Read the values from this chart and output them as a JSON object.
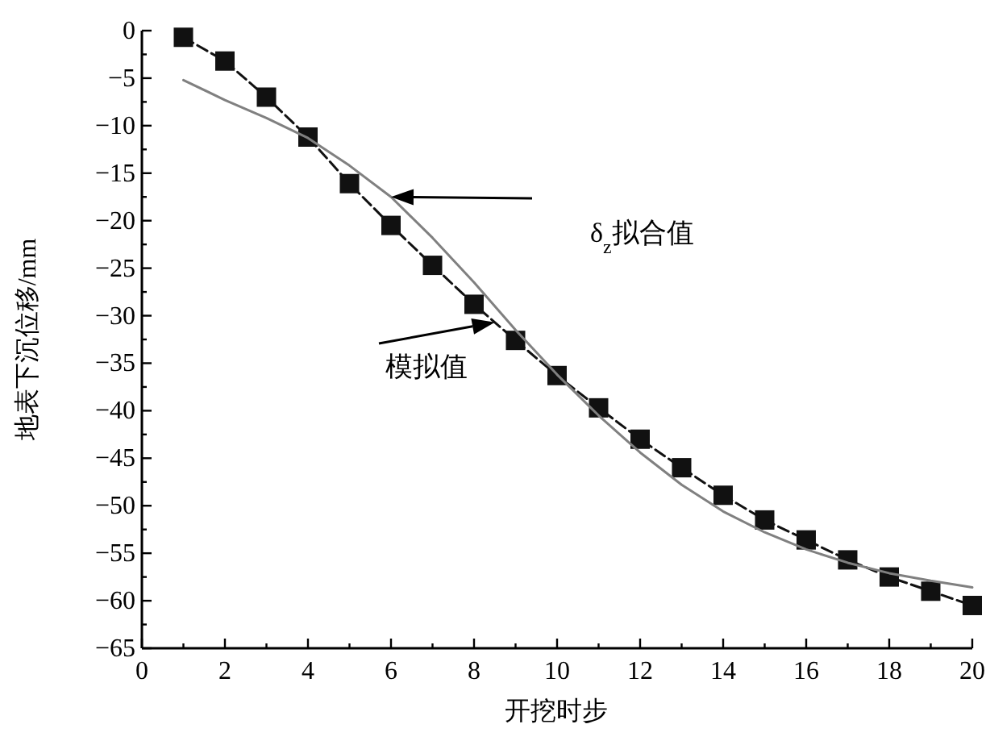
{
  "chart_data": {
    "type": "line",
    "xlabel": "开挖时步",
    "ylabel": "地表下沉位移/mm",
    "xlim": [
      0,
      20
    ],
    "xticks": [
      0,
      2,
      4,
      6,
      8,
      10,
      12,
      14,
      16,
      18,
      20
    ],
    "ylim": [
      -65,
      0
    ],
    "yticks": [
      -65,
      -60,
      -55,
      -50,
      -45,
      -40,
      -35,
      -30,
      -25,
      -20,
      -15,
      -10,
      -5,
      0
    ],
    "grid": false,
    "annotations": [
      {
        "text": "模拟值",
        "x": 8.5,
        "y": -30.7
      },
      "δ$_{z}$拟合值"
    ],
    "series": [
      {
        "color": "#111111",
        "marker": "square",
        "line_style": "dashed",
        "x": [
          1,
          2,
          3,
          4,
          5,
          6,
          7,
          8,
          9,
          10,
          11,
          12,
          13,
          14,
          15,
          16,
          17,
          18,
          19,
          20
        ],
        "values": [
          -0.7,
          -3.2,
          -7,
          -11.2,
          -16.1,
          -20.5,
          -24.7,
          -28.8,
          -32.6,
          -36.3,
          -39.7,
          -43,
          -46,
          -48.9,
          -51.5,
          -53.6,
          -55.7,
          -57.5,
          -59,
          -60.5
        ]
      },
      {
        "color": "#808080",
        "marker": "none",
        "line_style": "solid",
        "x": [
          1,
          2,
          3,
          4,
          5,
          6,
          7,
          8,
          9,
          10,
          11,
          12,
          13,
          14,
          15,
          16,
          17,
          18,
          19,
          20
        ],
        "values": [
          -5.2,
          -7.3,
          -9.2,
          -11.3,
          -14.2,
          -17.5,
          -21.8,
          -26.5,
          -31.5,
          -36.2,
          -40.5,
          -44.4,
          -47.8,
          -50.6,
          -52.8,
          -54.6,
          -56,
          -57.1,
          -57.9,
          -58.6
        ]
      }
    ]
  }
}
